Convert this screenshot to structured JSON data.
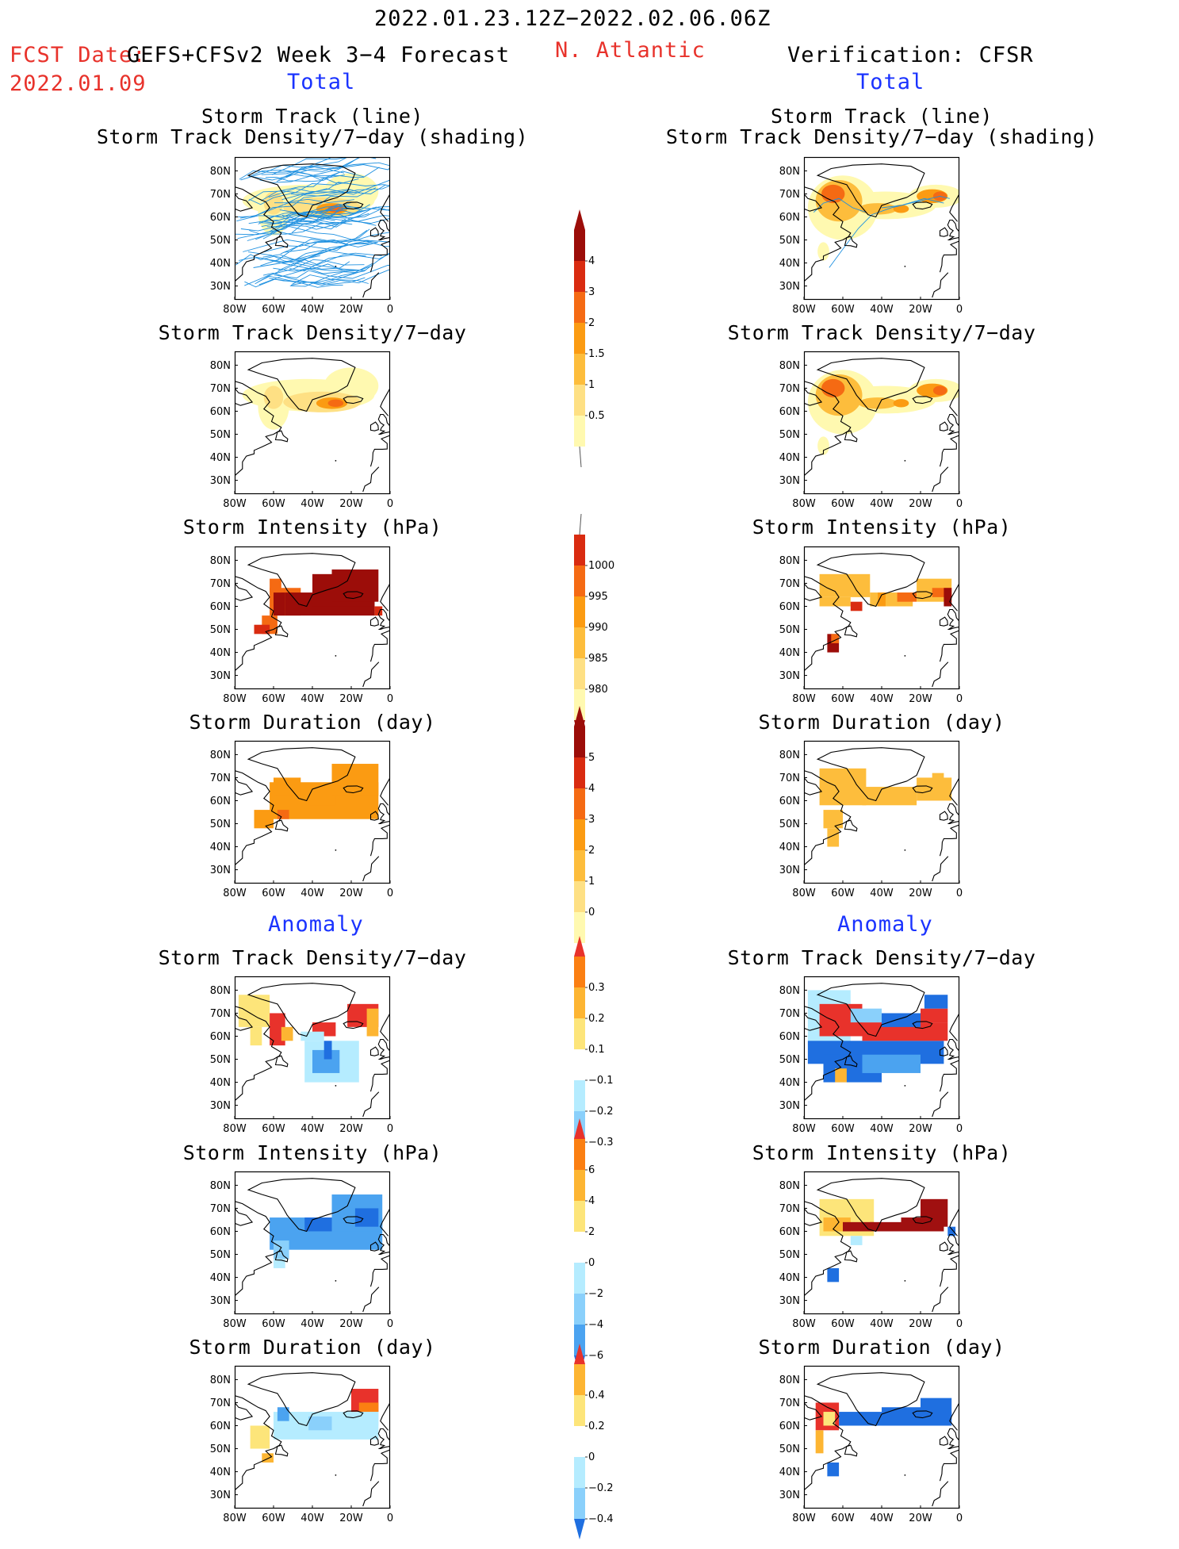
{
  "header": {
    "date_range": "2022.01.23.12Z−2022.02.06.06Z",
    "fcst_label": "FCST Date:",
    "fcst_date": "2022.01.09",
    "model": "GEFS+CFSv2 Week 3−4 Forecast",
    "region": "N. Atlantic",
    "verification": "Verification: CFSR",
    "total_left": "Total",
    "total_right": "Total",
    "anomaly_left": "Anomaly",
    "anomaly_right": "Anomaly"
  },
  "panel_titles": {
    "track_line": "Storm Track (line)",
    "track_shading": "Storm Track Density/7−day (shading)",
    "density": "Storm Track Density/7−day",
    "intensity": "Storm Intensity (hPa)",
    "duration": "Storm Duration (day)"
  },
  "axes": {
    "lat_ticks": [
      "80N",
      "70N",
      "60N",
      "50N",
      "40N",
      "30N"
    ],
    "lon_ticks": [
      "80W",
      "60W",
      "40W",
      "20W",
      "0"
    ]
  },
  "colorbars": {
    "density_total": [
      "0.5",
      "1",
      "1.5",
      "2",
      "3",
      "4"
    ],
    "intensity_total": [
      "1000",
      "995",
      "990",
      "985",
      "980"
    ],
    "duration_total": [
      "0",
      "1",
      "2",
      "3",
      "4",
      "5"
    ],
    "density_anom": [
      "0.3",
      "0.2",
      "0.1",
      "−0.1",
      "−0.2",
      "−0.3"
    ],
    "intensity_anom": [
      "6",
      "4",
      "2",
      "0",
      "−2",
      "−4",
      "−6"
    ],
    "duration_anom": [
      "0.4",
      "0.2",
      "0",
      "−0.2",
      "−0.4"
    ]
  },
  "colors": {
    "title_red": "#e8322b",
    "title_blue": "#1a33ff",
    "total_scale": [
      "#fff9b0",
      "#fee084",
      "#fdbd3c",
      "#fb9b12",
      "#f56a13",
      "#d92b10",
      "#9c0d09"
    ],
    "anom_scale_warm": [
      "#fde57a",
      "#fdb532",
      "#fb7f12",
      "#e8322b"
    ],
    "anom_scale_cool": [
      "#b5ecff",
      "#8ad0fb",
      "#4ba3f0",
      "#1f6fe0"
    ],
    "track_line": "#1e90e0"
  }
}
